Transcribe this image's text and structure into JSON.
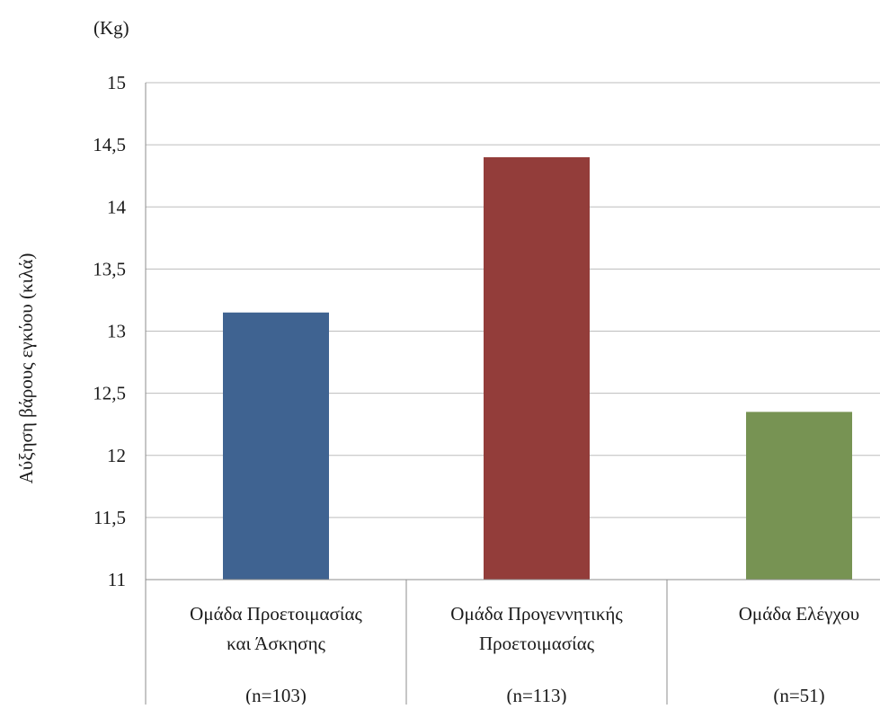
{
  "chart_data": {
    "type": "bar",
    "unit_label": "(Kg)",
    "ylabel": "Αύξηση βάρους εγκύου (κιλά)",
    "xlabel": "",
    "ylim": [
      11,
      15
    ],
    "yticks": [
      11,
      11.5,
      12,
      12.5,
      13,
      13.5,
      14,
      14.5,
      15
    ],
    "ytick_labels": [
      "11",
      "11,5",
      "12",
      "12,5",
      "13",
      "13,5",
      "14",
      "14,5",
      "15"
    ],
    "grid": true,
    "categories": [
      {
        "line1": "Ομάδα Προετοιμασίας",
        "line2": "και Άσκησης",
        "n": "(n=103)"
      },
      {
        "line1": "Ομάδα Προγεννητικής",
        "line2": "Προετοιμασίας",
        "n": "(n=113)"
      },
      {
        "line1": "Ομάδα Ελέγχου",
        "line2": "",
        "n": "(n=51)"
      }
    ],
    "values": [
      13.15,
      14.4,
      12.35
    ],
    "colors": [
      "#3f6391",
      "#933d3a",
      "#779353"
    ]
  }
}
